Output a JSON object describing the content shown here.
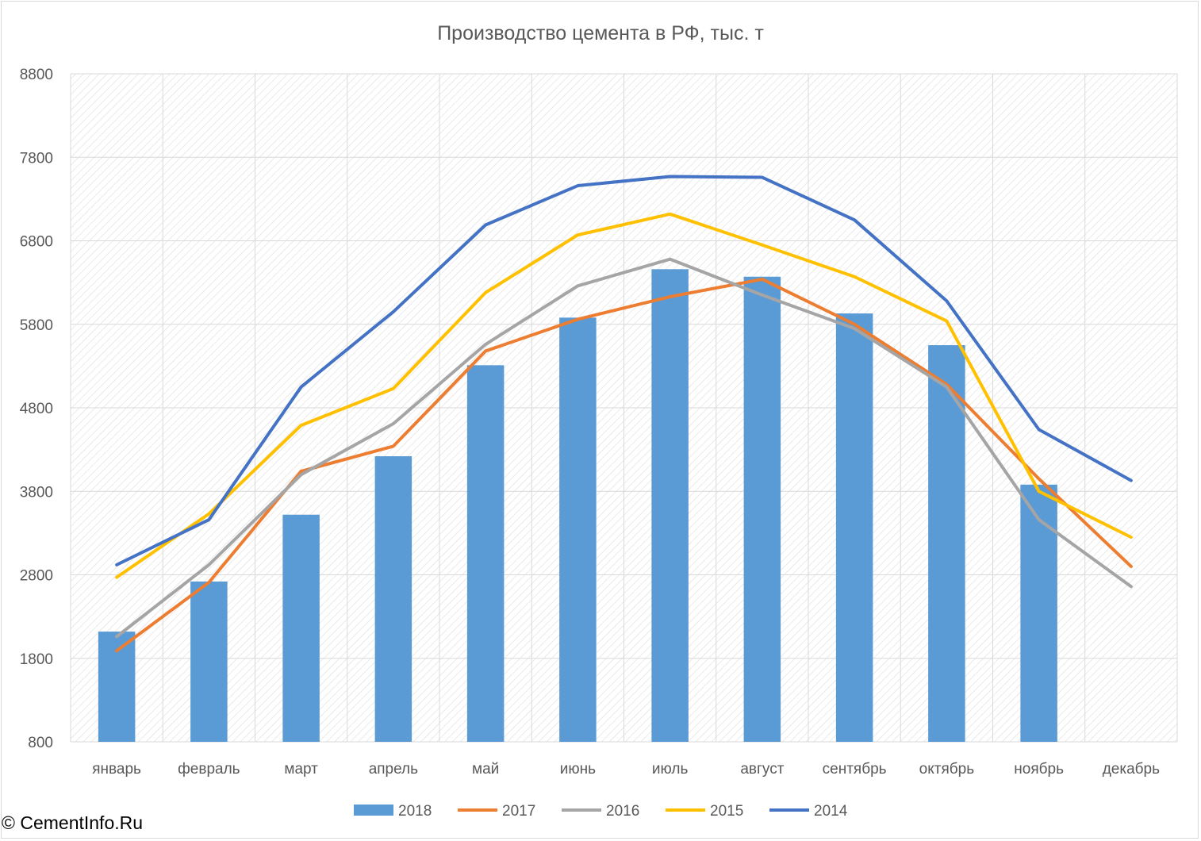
{
  "copyright": "© CementInfo.Ru",
  "chart_data": {
    "type": "bar",
    "title": "Производство цемента в РФ, тыс. т",
    "categories": [
      "январь",
      "февраль",
      "март",
      "апрель",
      "май",
      "июнь",
      "июль",
      "август",
      "сентябрь",
      "октябрь",
      "ноябрь",
      "декабрь"
    ],
    "ylim": [
      800,
      8800
    ],
    "yticks": [
      800,
      1800,
      2800,
      3800,
      4800,
      5800,
      6800,
      7800,
      8800
    ],
    "grid": true,
    "legend_position": "bottom",
    "bar_series": {
      "name": "2018",
      "color": "#5b9bd5",
      "values": [
        2120,
        2720,
        3520,
        4220,
        5310,
        5880,
        6460,
        6370,
        5930,
        5550,
        3880,
        null
      ]
    },
    "line_series": [
      {
        "name": "2017",
        "color": "#ed7d31",
        "values": [
          1890,
          2710,
          4040,
          4340,
          5480,
          5860,
          6130,
          6340,
          5800,
          5080,
          3950,
          2900
        ]
      },
      {
        "name": "2016",
        "color": "#a5a5a5",
        "values": [
          2060,
          2920,
          4000,
          4610,
          5560,
          6260,
          6580,
          6150,
          5750,
          5050,
          3460,
          2660
        ]
      },
      {
        "name": "2015",
        "color": "#ffc000",
        "values": [
          2770,
          3530,
          4590,
          5030,
          6180,
          6870,
          7120,
          6750,
          6370,
          5840,
          3800,
          3250
        ]
      },
      {
        "name": "2014",
        "color": "#4472c4",
        "values": [
          2920,
          3460,
          5050,
          5950,
          6990,
          7460,
          7570,
          7560,
          7050,
          6080,
          4540,
          3930
        ]
      }
    ]
  }
}
